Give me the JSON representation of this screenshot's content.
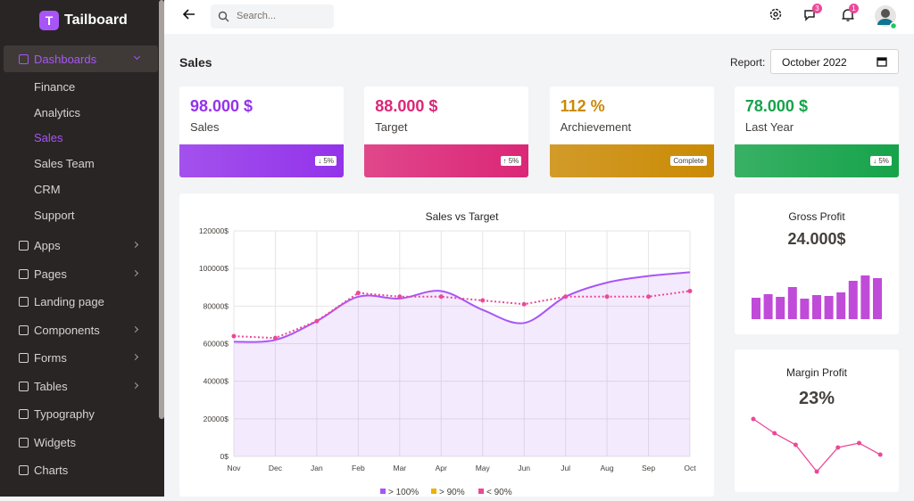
{
  "sidebar": {
    "logo": "T",
    "brand": "Tailboard",
    "menu": [
      {
        "label": "Dashboards",
        "submenu": true,
        "expanded": true,
        "children": [
          "Finance",
          "Analytics",
          "Sales",
          "Sales Team",
          "CRM",
          "Support"
        ],
        "active_child": 2
      },
      {
        "label": "Apps",
        "submenu": true
      },
      {
        "label": "Pages",
        "submenu": true
      },
      {
        "label": "Landing page"
      },
      {
        "label": "Components",
        "submenu": true
      },
      {
        "label": "Forms",
        "submenu": true
      },
      {
        "label": "Tables",
        "submenu": true
      },
      {
        "label": "Typography"
      },
      {
        "label": "Widgets"
      },
      {
        "label": "Charts"
      }
    ]
  },
  "header": {
    "search_placeholder": "Search...",
    "messages_badge": "3",
    "notifications_badge": "1"
  },
  "page": {
    "title": "Sales",
    "report_label": "Report:",
    "report_value": "October 2022"
  },
  "cards": [
    {
      "value": "98.000 $",
      "label": "Sales",
      "badge": "↓ 5%",
      "color": "#9333ea"
    },
    {
      "value": "88.000 $",
      "label": "Target",
      "badge": "↑ 5%",
      "color": "#db2777"
    },
    {
      "value": "112 %",
      "label": "Archievement",
      "badge": "Complete",
      "color": "#ca8a04"
    },
    {
      "value": "78.000 $",
      "label": "Last Year",
      "badge": "↓ 5%",
      "color": "#16a34a"
    }
  ],
  "sales_chart": {
    "type": "line",
    "title": "Sales vs Target",
    "categories": [
      "Nov",
      "Dec",
      "Jan",
      "Feb",
      "Mar",
      "Apr",
      "May",
      "Jun",
      "Jul",
      "Aug",
      "Sep",
      "Oct"
    ],
    "ylim": [
      0,
      120000
    ],
    "yticks": [
      {
        "value": 0,
        "label": "0$"
      },
      {
        "value": 20000,
        "label": "20000$"
      },
      {
        "value": 40000,
        "label": "40000$"
      },
      {
        "value": 60000,
        "label": "60000$"
      },
      {
        "value": 80000,
        "label": "80000$"
      },
      {
        "value": 100000,
        "label": "100000$"
      },
      {
        "value": 120000,
        "label": "120000$"
      }
    ],
    "grid": true,
    "series": [
      {
        "name": "> 100%",
        "color": "#a855f7",
        "values": [
          61000,
          62000,
          72000,
          85000,
          84000,
          88000,
          78000,
          71000,
          85000,
          92500,
          96000,
          98000
        ]
      },
      {
        "name": "> 90%",
        "color": "#eab308",
        "values": [
          null,
          null,
          null,
          null,
          null,
          null,
          null,
          null,
          null,
          null,
          null,
          null
        ]
      },
      {
        "name": "< 90%",
        "color": "#ec4899",
        "values": [
          64000,
          63000,
          72000,
          87000,
          85000,
          85000,
          83000,
          81000,
          85000,
          85000,
          85000,
          88000
        ]
      }
    ]
  },
  "gross_profit": {
    "type": "bar",
    "title": "Gross Profit",
    "total": "24.000$",
    "color": "#c04bd8",
    "values": [
      24,
      28,
      25,
      36,
      23,
      27,
      26,
      30,
      43,
      49,
      46
    ]
  },
  "margin_profit": {
    "type": "line",
    "title": "Margin Profit",
    "total": "23%",
    "color": "#ec4899",
    "values": [
      90,
      74,
      61,
      31,
      58,
      63,
      50
    ]
  }
}
